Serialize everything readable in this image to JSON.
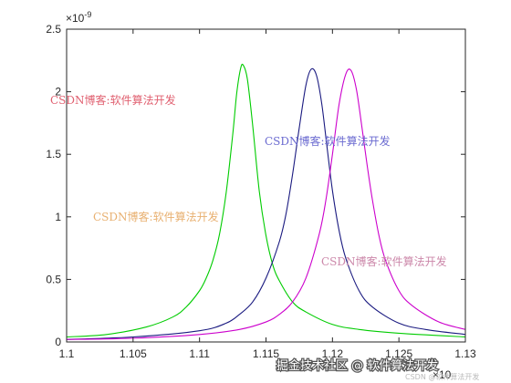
{
  "chart_data": {
    "type": "line",
    "title": "",
    "xlabel": "",
    "ylabel": "",
    "xlim": [
      1.1,
      1.13
    ],
    "ylim": [
      0,
      2.5
    ],
    "x_exponent_label": "×10",
    "y_exponent_label": "×10",
    "y_exponent_power": "-9",
    "xticks": [
      "1.1",
      "1.105",
      "1.11",
      "1.115",
      "1.12",
      "1.125",
      "1.13"
    ],
    "xtick_values": [
      1.1,
      1.105,
      1.11,
      1.115,
      1.12,
      1.125,
      1.13
    ],
    "yticks": [
      "0",
      "0.5",
      "1",
      "1.5",
      "2",
      "2.5"
    ],
    "ytick_values": [
      0,
      0.5,
      1,
      1.5,
      2,
      2.5
    ],
    "grid": false,
    "series": [
      {
        "color": "#00cc00",
        "x": [
          1.1,
          1.103,
          1.106,
          1.108,
          1.109,
          1.11,
          1.1105,
          1.111,
          1.1115,
          1.112,
          1.1125,
          1.1128,
          1.1131,
          1.1133,
          1.1136,
          1.114,
          1.1145,
          1.115,
          1.1155,
          1.116,
          1.117,
          1.118,
          1.12,
          1.122,
          1.125,
          1.13
        ],
        "y": [
          0.04,
          0.06,
          0.12,
          0.2,
          0.28,
          0.41,
          0.51,
          0.65,
          0.86,
          1.19,
          1.66,
          1.99,
          2.19,
          2.21,
          2.1,
          1.73,
          1.2,
          0.85,
          0.62,
          0.49,
          0.32,
          0.24,
          0.14,
          0.1,
          0.07,
          0.04
        ]
      },
      {
        "color": "#1a1a80",
        "x": [
          1.1,
          1.105,
          1.11,
          1.112,
          1.113,
          1.114,
          1.115,
          1.116,
          1.1165,
          1.117,
          1.1175,
          1.118,
          1.1184,
          1.1188,
          1.1192,
          1.1196,
          1.12,
          1.1205,
          1.121,
          1.122,
          1.123,
          1.125,
          1.127,
          1.13
        ],
        "y": [
          0.02,
          0.04,
          0.09,
          0.15,
          0.22,
          0.32,
          0.51,
          0.8,
          1.02,
          1.34,
          1.71,
          2.05,
          2.18,
          2.13,
          1.9,
          1.55,
          1.21,
          0.89,
          0.67,
          0.41,
          0.28,
          0.15,
          0.1,
          0.06
        ]
      },
      {
        "color": "#cc00cc",
        "x": [
          1.1,
          1.105,
          1.11,
          1.113,
          1.115,
          1.116,
          1.117,
          1.118,
          1.119,
          1.1195,
          1.12,
          1.1205,
          1.121,
          1.1214,
          1.1218,
          1.1222,
          1.1226,
          1.123,
          1.1235,
          1.124,
          1.125,
          1.126,
          1.128,
          1.13
        ],
        "y": [
          0.02,
          0.03,
          0.06,
          0.1,
          0.16,
          0.22,
          0.32,
          0.51,
          0.86,
          1.13,
          1.5,
          1.9,
          2.14,
          2.17,
          2.02,
          1.73,
          1.42,
          1.14,
          0.85,
          0.65,
          0.41,
          0.29,
          0.16,
          0.1
        ]
      }
    ]
  },
  "watermarks": [
    {
      "text": "CSDN博客:软件算法开发",
      "color": "#e06070"
    },
    {
      "text": "CSDN博客:软件算法开发",
      "color": "#6a6ad0"
    },
    {
      "text": "CSDN博客:软件算法开发",
      "color": "#e8b070"
    },
    {
      "text": "CSDN博客:软件算法开发",
      "color": "#cc88aa"
    }
  ],
  "footer_watermark": "掘金技术社区 @ 软件算法开发",
  "footer_watermark_small": "CSDN @软件算法开发"
}
